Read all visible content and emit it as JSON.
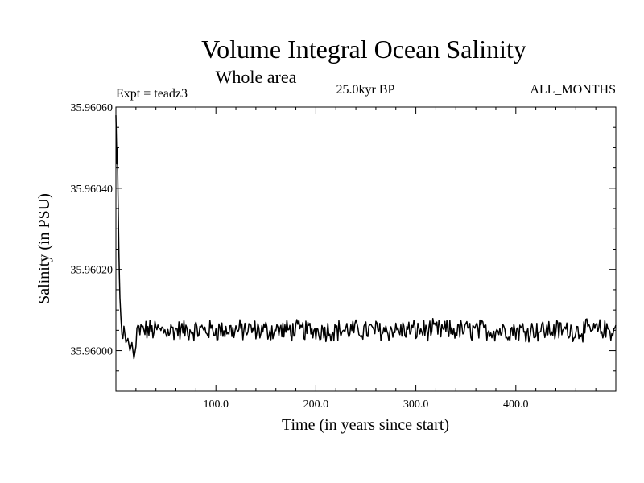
{
  "chart_data": {
    "type": "line",
    "title": "Volume Integral Ocean Salinity",
    "subtitle": "Whole area",
    "experiment_label": "Expt = teadz3",
    "period_label": "25.0kyr BP",
    "months_label": "ALL_MONTHS",
    "xlabel": "Time (in years since start)",
    "ylabel": "Salinity (in PSU)",
    "xlim": [
      0,
      500
    ],
    "ylim": [
      35.9599,
      35.9606
    ],
    "x_ticks": [
      100,
      200,
      300,
      400
    ],
    "x_tick_labels": [
      "100.0",
      "200.0",
      "300.0",
      "400.0"
    ],
    "y_ticks": [
      35.96,
      35.9602,
      35.9604,
      35.9606
    ],
    "y_tick_labels": [
      "35.96000",
      "35.96020",
      "35.96040",
      "35.96060"
    ],
    "grid": false,
    "series": [
      {
        "name": "Salinity",
        "color": "#000000",
        "spinup": {
          "x": [
            0,
            0.5,
            1,
            1.5,
            2,
            2.5,
            3,
            3.5,
            4,
            5,
            6,
            7,
            8,
            10,
            12,
            14,
            16,
            18,
            20
          ],
          "y": [
            35.96058,
            35.96052,
            35.96046,
            35.9605,
            35.9604,
            35.96032,
            35.96024,
            35.96018,
            35.96013,
            35.96008,
            35.96004,
            35.96003,
            35.96006,
            35.96002,
            35.96003,
            35.96,
            35.96002,
            35.95998,
            35.96001
          ]
        },
        "steady_mean": 35.96005,
        "steady_noise_amplitude": 3e-05
      }
    ]
  }
}
